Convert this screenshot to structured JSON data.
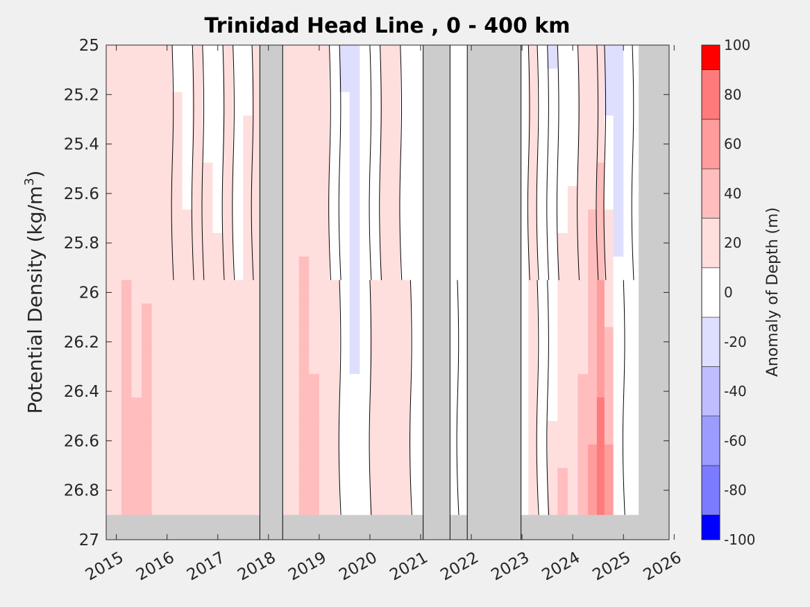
{
  "chart_data": {
    "type": "heatmap",
    "title": "Trinidad Head Line , 0 - 400 km",
    "ylabel_main": "Potential Density (kg/m",
    "ylabel_sup": "3",
    "ylabel_close": ")",
    "x_axis": {
      "range": [
        2014.8,
        2025.9
      ],
      "ticks": [
        2015,
        2016,
        2017,
        2018,
        2019,
        2020,
        2021,
        2022,
        2023,
        2024,
        2025,
        2026
      ],
      "tick_labels": [
        "2015",
        "2016",
        "2017",
        "2018",
        "2019",
        "2020",
        "2021",
        "2022",
        "2023",
        "2024",
        "2025",
        "2026"
      ]
    },
    "y_axis": {
      "range": [
        25,
        27
      ],
      "reversed": true,
      "ticks": [
        25,
        25.2,
        25.4,
        25.6,
        25.8,
        26,
        26.2,
        26.4,
        26.6,
        26.8,
        27
      ],
      "tick_labels": [
        "25",
        "25.2",
        "25.4",
        "25.6",
        "25.8",
        "26",
        "26.2",
        "26.4",
        "26.6",
        "26.8",
        "27"
      ]
    },
    "colorbar": {
      "label": "Anomaly of Depth (m)",
      "range": [
        -100,
        100
      ],
      "ticks": [
        100,
        80,
        60,
        40,
        20,
        0,
        -20,
        -40,
        -60,
        -80,
        -100
      ],
      "tick_labels": [
        "100",
        "80",
        "60",
        "40",
        "20",
        "0",
        "-20",
        "-40",
        "-60",
        "-80",
        "-100"
      ],
      "levels": [
        -100,
        -90,
        -70,
        -50,
        -30,
        -10,
        10,
        30,
        50,
        70,
        90,
        100
      ]
    },
    "missing_data_periods": [
      {
        "x0": 2017.83,
        "x1": 2018.28
      },
      {
        "x0": 2021.05,
        "x1": 2021.58
      },
      {
        "x0": 2021.92,
        "x1": 2022.98
      }
    ],
    "missing_data_tail": {
      "x0": 2025.3,
      "x1": 2025.9
    },
    "bottom_fill_sigma": 26.9,
    "time_series": [
      {
        "t": 2014.85,
        "top": 10,
        "bottom": 15
      },
      {
        "t": 2015.0,
        "top": 15,
        "bottom": 30
      },
      {
        "t": 2015.2,
        "top": 20,
        "bottom": 40
      },
      {
        "t": 2015.4,
        "top": 15,
        "bottom": 35
      },
      {
        "t": 2015.6,
        "top": 20,
        "bottom": 38
      },
      {
        "t": 2015.8,
        "top": 15,
        "bottom": 30
      },
      {
        "t": 2016.0,
        "top": 10,
        "bottom": 28
      },
      {
        "t": 2016.2,
        "top": 8,
        "bottom": 25
      },
      {
        "t": 2016.4,
        "top": 5,
        "bottom": 20
      },
      {
        "t": 2016.6,
        "top": 10,
        "bottom": 22
      },
      {
        "t": 2016.8,
        "top": 5,
        "bottom": 25
      },
      {
        "t": 2017.0,
        "top": 3,
        "bottom": 20
      },
      {
        "t": 2017.2,
        "top": 12,
        "bottom": 22
      },
      {
        "t": 2017.4,
        "top": 5,
        "bottom": 15
      },
      {
        "t": 2017.6,
        "top": 8,
        "bottom": 22
      },
      {
        "t": 2017.75,
        "top": 10,
        "bottom": 18
      },
      {
        "t": 2018.35,
        "top": 12,
        "bottom": 18
      },
      {
        "t": 2018.5,
        "top": 15,
        "bottom": 30
      },
      {
        "t": 2018.7,
        "top": 20,
        "bottom": 42
      },
      {
        "t": 2018.9,
        "top": 12,
        "bottom": 38
      },
      {
        "t": 2019.1,
        "top": 10,
        "bottom": 28
      },
      {
        "t": 2019.3,
        "top": 5,
        "bottom": 15
      },
      {
        "t": 2019.5,
        "top": -12,
        "bottom": 5
      },
      {
        "t": 2019.7,
        "top": -15,
        "bottom": -8
      },
      {
        "t": 2019.9,
        "top": -10,
        "bottom": 8
      },
      {
        "t": 2020.1,
        "top": 5,
        "bottom": 15
      },
      {
        "t": 2020.3,
        "top": 30,
        "bottom": 18
      },
      {
        "t": 2020.5,
        "top": 15,
        "bottom": 10
      },
      {
        "t": 2020.7,
        "top": 5,
        "bottom": 15
      },
      {
        "t": 2020.9,
        "top": -5,
        "bottom": 5
      },
      {
        "t": 2021.65,
        "top": 5,
        "bottom": 10
      },
      {
        "t": 2021.8,
        "top": -5,
        "bottom": 5
      },
      {
        "t": 2023.05,
        "top": 5,
        "bottom": 10
      },
      {
        "t": 2023.2,
        "top": 10,
        "bottom": 15
      },
      {
        "t": 2023.4,
        "top": -5,
        "bottom": 8
      },
      {
        "t": 2023.6,
        "top": -12,
        "bottom": 15
      },
      {
        "t": 2023.8,
        "top": -8,
        "bottom": 35
      },
      {
        "t": 2024.0,
        "top": 5,
        "bottom": 22
      },
      {
        "t": 2024.2,
        "top": 10,
        "bottom": 38
      },
      {
        "t": 2024.4,
        "top": 15,
        "bottom": 55
      },
      {
        "t": 2024.55,
        "top": 8,
        "bottom": 90
      },
      {
        "t": 2024.7,
        "top": -20,
        "bottom": 60
      },
      {
        "t": 2024.9,
        "top": -25,
        "bottom": 10
      },
      {
        "t": 2025.1,
        "top": -10,
        "bottom": 5
      },
      {
        "t": 2025.25,
        "top": 5,
        "bottom": 5
      }
    ]
  }
}
